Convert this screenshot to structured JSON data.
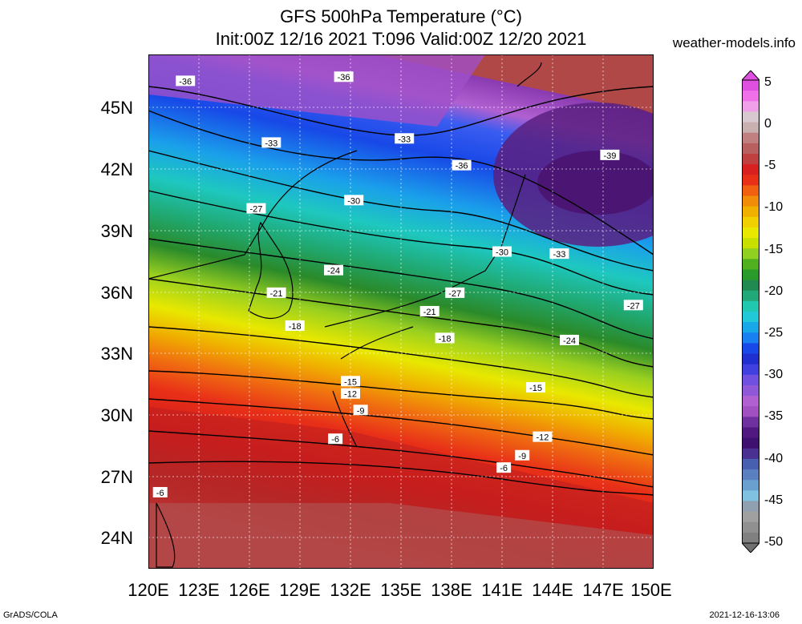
{
  "title_line1": "GFS 500hPa Temperature (°C)",
  "title_line2": "Init:00Z 12/16 2021 T:096 Valid:00Z 12/20 2021",
  "site": "weather-models.info",
  "footer_left": "GrADS/COLA",
  "footer_right": "2021-12-16-13:06",
  "lat_labels": [
    "45N",
    "42N",
    "39N",
    "36N",
    "33N",
    "30N",
    "27N",
    "24N"
  ],
  "lon_labels": [
    "120E",
    "123E",
    "126E",
    "129E",
    "132E",
    "135E",
    "138E",
    "141E",
    "144E",
    "147E",
    "150E"
  ],
  "colorbar_labels": [
    "5",
    "0",
    "-5",
    "-10",
    "-15",
    "-20",
    "-25",
    "-30",
    "-35",
    "-40",
    "-45",
    "-50"
  ],
  "map_data": {
    "variable": "500hPa Temperature",
    "units": "°C",
    "lon_range": [
      120,
      150
    ],
    "lat_range": [
      22.5,
      47.5
    ],
    "contour_interval": 3,
    "contour_labels": [
      {
        "text": "-36",
        "lon": 122.2,
        "lat": 46.2
      },
      {
        "text": "-36",
        "lon": 131.6,
        "lat": 46.4
      },
      {
        "text": "-33",
        "lon": 127.3,
        "lat": 43.2
      },
      {
        "text": "-33",
        "lon": 135.2,
        "lat": 43.4
      },
      {
        "text": "-36",
        "lon": 138.6,
        "lat": 42.1
      },
      {
        "text": "-39",
        "lon": 147.4,
        "lat": 42.6
      },
      {
        "text": "-30",
        "lon": 132.2,
        "lat": 40.4
      },
      {
        "text": "-27",
        "lon": 126.4,
        "lat": 40.0
      },
      {
        "text": "-30",
        "lon": 141.0,
        "lat": 37.9
      },
      {
        "text": "-33",
        "lon": 144.4,
        "lat": 37.8
      },
      {
        "text": "-24",
        "lon": 131.0,
        "lat": 37.0
      },
      {
        "text": "-27",
        "lon": 138.2,
        "lat": 35.9
      },
      {
        "text": "-27",
        "lon": 148.8,
        "lat": 35.3
      },
      {
        "text": "-21",
        "lon": 127.6,
        "lat": 35.9
      },
      {
        "text": "-21",
        "lon": 136.7,
        "lat": 35.0
      },
      {
        "text": "-24",
        "lon": 145.0,
        "lat": 33.6
      },
      {
        "text": "-18",
        "lon": 128.7,
        "lat": 34.3
      },
      {
        "text": "-18",
        "lon": 137.6,
        "lat": 33.7
      },
      {
        "text": "-15",
        "lon": 132.0,
        "lat": 31.6
      },
      {
        "text": "-15",
        "lon": 143.0,
        "lat": 31.3
      },
      {
        "text": "-12",
        "lon": 132.0,
        "lat": 31.0
      },
      {
        "text": "-9",
        "lon": 132.6,
        "lat": 30.2
      },
      {
        "text": "-12",
        "lon": 143.4,
        "lat": 28.9
      },
      {
        "text": "-6",
        "lon": 131.1,
        "lat": 28.8
      },
      {
        "text": "-9",
        "lon": 142.2,
        "lat": 28.0
      },
      {
        "text": "-6",
        "lon": 141.1,
        "lat": 27.4
      },
      {
        "text": "-6",
        "lon": 120.7,
        "lat": 26.2
      }
    ]
  },
  "colors": {
    "c5": "#e85ee0",
    "c0": "#c8c8c8",
    "cm5": "#d21d1d",
    "cm10": "#f3a300",
    "cm15": "#e8e800",
    "cm20": "#2e9a2e",
    "cm25": "#20c8c0",
    "cm30": "#1640e6",
    "cm35": "#c05ed8",
    "cm40": "#3a1060",
    "cm45": "#5e9ad0",
    "cm50": "#808080"
  }
}
